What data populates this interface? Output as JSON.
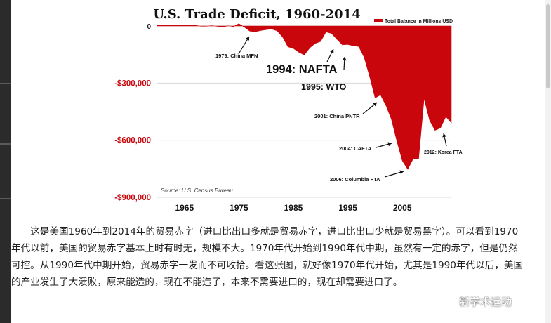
{
  "chart_data": {
    "type": "area",
    "title": "U.S. Trade Deficit, 1960-2014",
    "legend": {
      "label": "Total Balance in Millions USD",
      "position": "top-right",
      "color": "#c9060c"
    },
    "xlim": [
      1960,
      2014
    ],
    "ylim": [
      -900000,
      0
    ],
    "x_ticks": [
      1965,
      1975,
      1985,
      1995,
      2005
    ],
    "y_ticks": [
      {
        "value": 0,
        "label": "0"
      },
      {
        "value": -300000,
        "label": "-$300,000"
      },
      {
        "value": -600000,
        "label": "-$600,000"
      },
      {
        "value": -900000,
        "label": "-$900,000"
      }
    ],
    "source": "Source: U.S. Census Bureau",
    "series": [
      {
        "name": "Total Balance in Millions USD",
        "x": [
          1960,
          1961,
          1962,
          1963,
          1964,
          1965,
          1966,
          1967,
          1968,
          1969,
          1970,
          1971,
          1972,
          1973,
          1974,
          1975,
          1976,
          1977,
          1978,
          1979,
          1980,
          1981,
          1982,
          1983,
          1984,
          1985,
          1986,
          1987,
          1988,
          1989,
          1990,
          1991,
          1992,
          1993,
          1994,
          1995,
          1996,
          1997,
          1998,
          1999,
          2000,
          2001,
          2002,
          2003,
          2004,
          2005,
          2006,
          2007,
          2008,
          2009,
          2010,
          2011,
          2012,
          2013,
          2014
        ],
        "values": [
          4000,
          5000,
          3000,
          4000,
          6000,
          4000,
          3000,
          3000,
          -1000,
          -1000,
          2000,
          -2000,
          -6000,
          1000,
          -3000,
          12000,
          -6000,
          -27000,
          -30000,
          -24000,
          -19000,
          -16000,
          -25000,
          -57000,
          -109000,
          -118000,
          -138000,
          -152000,
          -115000,
          -92000,
          -81000,
          -31000,
          -39000,
          -70000,
          -99000,
          -97000,
          -104000,
          -108000,
          -166000,
          -265000,
          -378000,
          -362000,
          -418000,
          -490000,
          -605000,
          -708000,
          -753000,
          -697000,
          -698000,
          -381000,
          -495000,
          -548000,
          -536000,
          -476000,
          -509000
        ]
      }
    ],
    "annotations": [
      {
        "text": "1979: China MFN",
        "x": 1979
      },
      {
        "text": "1994: NAFTA",
        "x": 1994
      },
      {
        "text": "1995: WTO",
        "x": 1995
      },
      {
        "text": "2001: China PNTR",
        "x": 2001
      },
      {
        "text": "2004: CAFTA",
        "x": 2004
      },
      {
        "text": "2006: Columbia FTA",
        "x": 2006
      },
      {
        "text": "2012: Korea FTA",
        "x": 2012
      }
    ],
    "grid": true
  },
  "article": {
    "paragraph": "这是美国1960年到2014年的贸易赤字（进口比出口多就是贸易赤字，进口比出口少就是贸易黑字）。可以看到1970年代以前，美国的贸易赤字基本上时有时无，规模不大。1970年代开始到1990年代中期，虽然有一定的赤字，但是仍然可控。从1990年代中期开始，贸易赤字一发而不可收拾。看这张图，就好像1970年代开始，尤其是1990年代以后，美国的产业发生了大溃败，原来能造的，现在不能造了，本来不需要进口的，现在却需要进口了。"
  },
  "watermark": {
    "text": "新学术运动",
    "icon": "wechat-icon"
  }
}
